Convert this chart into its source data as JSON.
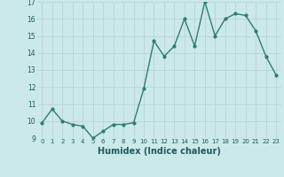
{
  "x": [
    0,
    1,
    2,
    3,
    4,
    5,
    6,
    7,
    8,
    9,
    10,
    11,
    12,
    13,
    14,
    15,
    16,
    17,
    18,
    19,
    20,
    21,
    22,
    23
  ],
  "y": [
    9.9,
    10.7,
    10.0,
    9.8,
    9.7,
    9.0,
    9.4,
    9.8,
    9.8,
    9.9,
    11.9,
    14.7,
    13.8,
    14.4,
    16.0,
    14.4,
    17.0,
    15.0,
    16.0,
    16.3,
    16.2,
    15.3,
    13.8,
    12.7
  ],
  "xlabel": "Humidex (Indice chaleur)",
  "ylim": [
    9,
    17
  ],
  "xlim_min": -0.5,
  "xlim_max": 23.5,
  "yticks": [
    9,
    10,
    11,
    12,
    13,
    14,
    15,
    16,
    17
  ],
  "xticks": [
    0,
    1,
    2,
    3,
    4,
    5,
    6,
    7,
    8,
    9,
    10,
    11,
    12,
    13,
    14,
    15,
    16,
    17,
    18,
    19,
    20,
    21,
    22,
    23
  ],
  "line_color": "#2e7d6e",
  "marker_color": "#2e7d6e",
  "bg_color": "#cce9e9",
  "grid_color": "#b8d4d4"
}
